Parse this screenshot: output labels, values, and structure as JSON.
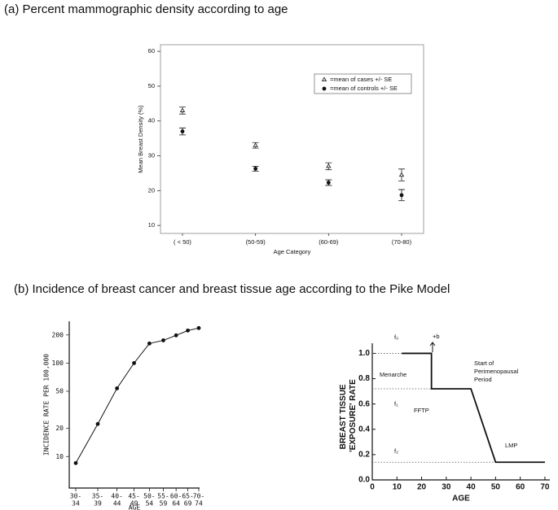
{
  "chart_data": [
    {
      "type": "scatter",
      "title": "(a) Percent mammographic density according to age",
      "y_label": "Mean Breast Density (%)",
      "x_label": "Age Category",
      "categories": [
        "( < 50)",
        "(50-59)",
        "(60-69)",
        "(70-80)"
      ],
      "ylim": [
        7.7,
        61.9
      ],
      "yticks": [
        10,
        20,
        30,
        40,
        50,
        60
      ],
      "series": [
        {
          "name": "=mean of cases +/- SE",
          "marker": "triangle",
          "color": "#222222",
          "values": [
            43,
            33,
            27,
            24.5
          ],
          "errors": [
            1,
            0.8,
            1,
            1.7
          ]
        },
        {
          "name": "=mean of controls +/- SE",
          "marker": "circle",
          "color": "#111111",
          "values": [
            37,
            26.3,
            22.3,
            18.7
          ],
          "errors": [
            1,
            0.7,
            0.8,
            1.6
          ]
        }
      ]
    },
    {
      "type": "line",
      "title": "(b) Incidence of breast cancer and breast tissue age according to the Pike Model",
      "y_label": "INCIDENCE RATE PER 100,000",
      "x_label": "AGE",
      "log_y": true,
      "categories": [
        "30-34",
        "35-39",
        "40-44",
        "45-49",
        "50-54",
        "55-59",
        "60-64",
        "65-69",
        "70-74"
      ],
      "ylim": [
        4.6,
        280
      ],
      "yticks": [
        10,
        20,
        50,
        100,
        200
      ],
      "series": [
        {
          "color": "#111111",
          "marker": "circle",
          "values": [
            8.5,
            22.3,
            53.7,
            100,
            162,
            175,
            198,
            223,
            237
          ]
        }
      ]
    },
    {
      "type": "line",
      "y_label": "BREAST TISSUE 'EXPOSURE' RATE",
      "x_label": "AGE",
      "xlim": [
        0,
        72
      ],
      "xticks": [
        0,
        10,
        20,
        30,
        40,
        50,
        60,
        70
      ],
      "ylim": [
        0,
        1.08
      ],
      "yticks": [
        {
          "value": 0,
          "label": "0.0"
        },
        0.2,
        0.4,
        0.6,
        0.8,
        {
          "value": 1,
          "label": "1.0"
        }
      ],
      "series": [
        {
          "color": "#111111",
          "x": [
            12,
            24,
            24,
            40,
            50,
            70
          ],
          "values": [
            1,
            1,
            0.72,
            0.72,
            0.14,
            0.14
          ]
        }
      ],
      "annotations": [
        "f₀",
        "+b",
        "Menarche",
        "f₁",
        "FFTP",
        "Start of Perimenopausal Period",
        "f₂",
        "LMP"
      ]
    }
  ]
}
